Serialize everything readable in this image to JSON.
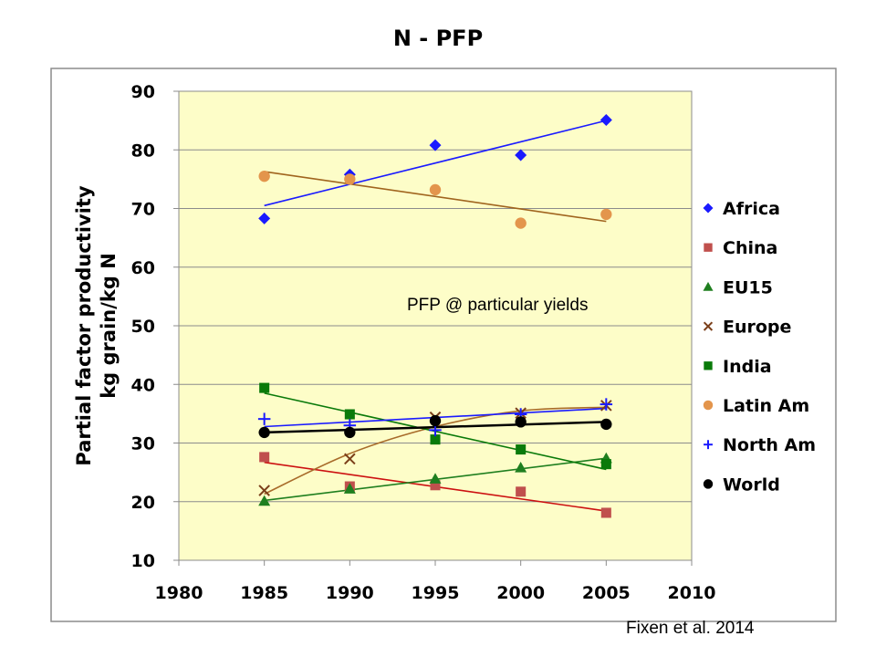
{
  "title": "N - PFP",
  "citation": "Fixen et al. 2014",
  "annotation": "PFP @ particular yields",
  "chart_data": {
    "type": "scatter",
    "title": "N - PFP",
    "ylabel_line1": "Partial factor productivity",
    "ylabel_line2": "kg grain/kg N",
    "xlabel": "",
    "xlim": [
      1980,
      2010
    ],
    "ylim": [
      10,
      90
    ],
    "x_ticks": [
      "1980",
      "1985",
      "1990",
      "1995",
      "2000",
      "2005",
      "2010"
    ],
    "y_ticks": [
      "10",
      "20",
      "30",
      "40",
      "50",
      "60",
      "70",
      "80",
      "90"
    ],
    "grid": true,
    "legend_position": "right",
    "background_color": "#fdfdc8",
    "series": [
      {
        "name": "Africa",
        "marker": "diamond",
        "color": "#1a1aff",
        "x": [
          1985,
          1990,
          1995,
          2000,
          2005
        ],
        "y": [
          68.3,
          75.8,
          80.8,
          79.1,
          85.1
        ],
        "trend": "linear",
        "trend_color": "#1a1aff",
        "trend_line": [
          [
            1985,
            70.5
          ],
          [
            2005,
            85.0
          ]
        ]
      },
      {
        "name": "China",
        "marker": "square",
        "color": "#c0504d",
        "x": [
          1985,
          1990,
          1995,
          2000,
          2005
        ],
        "y": [
          27.6,
          22.6,
          22.8,
          21.7,
          18.1
        ],
        "trend": "linear",
        "trend_color": "#cc1010",
        "trend_line": [
          [
            1985,
            26.7
          ],
          [
            2005,
            18.4
          ]
        ]
      },
      {
        "name": "EU15",
        "marker": "triangle",
        "color": "#1f7f1f",
        "x": [
          1985,
          1990,
          1995,
          2000,
          2005
        ],
        "y": [
          20.1,
          22.2,
          23.9,
          25.8,
          27.4
        ],
        "trend": "linear",
        "trend_color": "#1f7f1f",
        "trend_line": [
          [
            1985,
            20.2
          ],
          [
            2005,
            27.4
          ]
        ]
      },
      {
        "name": "Europe",
        "marker": "x",
        "color": "#7b3f1a",
        "x": [
          1985,
          1990,
          1995,
          2000,
          2005
        ],
        "y": [
          21.9,
          27.3,
          34.4,
          35.1,
          36.4
        ],
        "trend": "curve",
        "trend_color": "#a86b2a",
        "trend_line": [
          [
            1985,
            21.3
          ],
          [
            1990,
            28.2
          ],
          [
            1995,
            32.8
          ],
          [
            2000,
            35.5
          ],
          [
            2005,
            36.1
          ]
        ]
      },
      {
        "name": "India",
        "marker": "square",
        "color": "#0a7a0a",
        "x": [
          1985,
          1990,
          1995,
          2000,
          2005
        ],
        "y": [
          39.4,
          34.9,
          30.6,
          28.9,
          26.4
        ],
        "trend": "linear",
        "trend_color": "#0a7a0a",
        "trend_line": [
          [
            1985,
            38.5
          ],
          [
            2005,
            25.5
          ]
        ]
      },
      {
        "name": "Latin Am",
        "marker": "circle",
        "color": "#e3954c",
        "x": [
          1985,
          1990,
          1995,
          2000,
          2005
        ],
        "y": [
          75.5,
          75.0,
          73.2,
          67.5,
          69.0
        ],
        "trend": "linear",
        "trend_color": "#a0641e",
        "trend_line": [
          [
            1985,
            76.3
          ],
          [
            2005,
            67.8
          ]
        ]
      },
      {
        "name": "North Am",
        "marker": "plus",
        "color": "#1a1aff",
        "x": [
          1985,
          1990,
          1995,
          2000,
          2005
        ],
        "y": [
          34.1,
          33.0,
          32.2,
          34.9,
          36.6
        ],
        "trend": "linear",
        "trend_color": "#1a1aff",
        "trend_line": [
          [
            1985,
            32.8
          ],
          [
            2005,
            35.9
          ]
        ]
      },
      {
        "name": "World",
        "marker": "circle",
        "color": "#000000",
        "x": [
          1985,
          1990,
          1995,
          2000,
          2005
        ],
        "y": [
          31.8,
          31.8,
          33.8,
          33.6,
          33.2
        ],
        "trend": "linear",
        "trend_color": "#000000",
        "trend_line": [
          [
            1985,
            31.8
          ],
          [
            2005,
            33.6
          ]
        ]
      }
    ]
  }
}
